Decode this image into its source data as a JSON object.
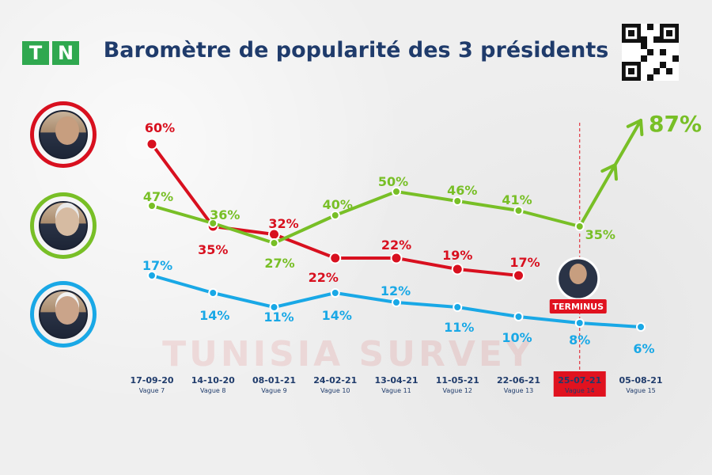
{
  "header": {
    "logo_letters": [
      "T",
      "N"
    ],
    "title": "Baromètre de popularité des 3 présidents"
  },
  "icons": [
    "tn-logo",
    "qr-code",
    "trend-arrow-icon"
  ],
  "colors": {
    "red": "#d8101f",
    "green": "#78bf26",
    "blue": "#19a8e6",
    "title": "#1f3b6b",
    "highlight": "#e0121f"
  },
  "watermark": "TUNISIA SURVEY",
  "chart_data": {
    "type": "line",
    "title": "Baromètre de popularité des 3 présidents",
    "xlabel": "",
    "ylabel": "",
    "categories": [
      {
        "date": "17-09-20",
        "wave": "Vague 7"
      },
      {
        "date": "14-10-20",
        "wave": "Vague 8"
      },
      {
        "date": "08-01-21",
        "wave": "Vague 9"
      },
      {
        "date": "24-02-21",
        "wave": "Vague 10"
      },
      {
        "date": "13-04-21",
        "wave": "Vague 11"
      },
      {
        "date": "11-05-21",
        "wave": "Vague 12"
      },
      {
        "date": "22-06-21",
        "wave": "Vague 13"
      },
      {
        "date": "25-07-21",
        "wave": "Vague 14",
        "highlight": true
      },
      {
        "date": "05-08-21",
        "wave": "Vague 15"
      }
    ],
    "series": [
      {
        "color": "#d8101f",
        "values": [
          60,
          35,
          32,
          22,
          22,
          19,
          17,
          null,
          null
        ],
        "labels": [
          "60%",
          "35%",
          "32%",
          "22%",
          "22%",
          "19%",
          "17%",
          "",
          ""
        ]
      },
      {
        "color": "#78bf26",
        "values": [
          47,
          36,
          27,
          40,
          50,
          46,
          41,
          35,
          87
        ],
        "labels": [
          "47%",
          "36%",
          "27%",
          "40%",
          "50%",
          "46%",
          "41%",
          "35%",
          "87%"
        ]
      },
      {
        "color": "#19a8e6",
        "values": [
          17,
          14,
          11,
          14,
          12,
          11,
          10,
          8,
          6
        ],
        "labels": [
          "17%",
          "14%",
          "11%",
          "14%",
          "12%",
          "11%",
          "10%",
          "8%",
          "6%"
        ]
      }
    ],
    "annotations": [
      {
        "text": "TERMINUS"
      }
    ],
    "grid": false,
    "legend": "none"
  }
}
